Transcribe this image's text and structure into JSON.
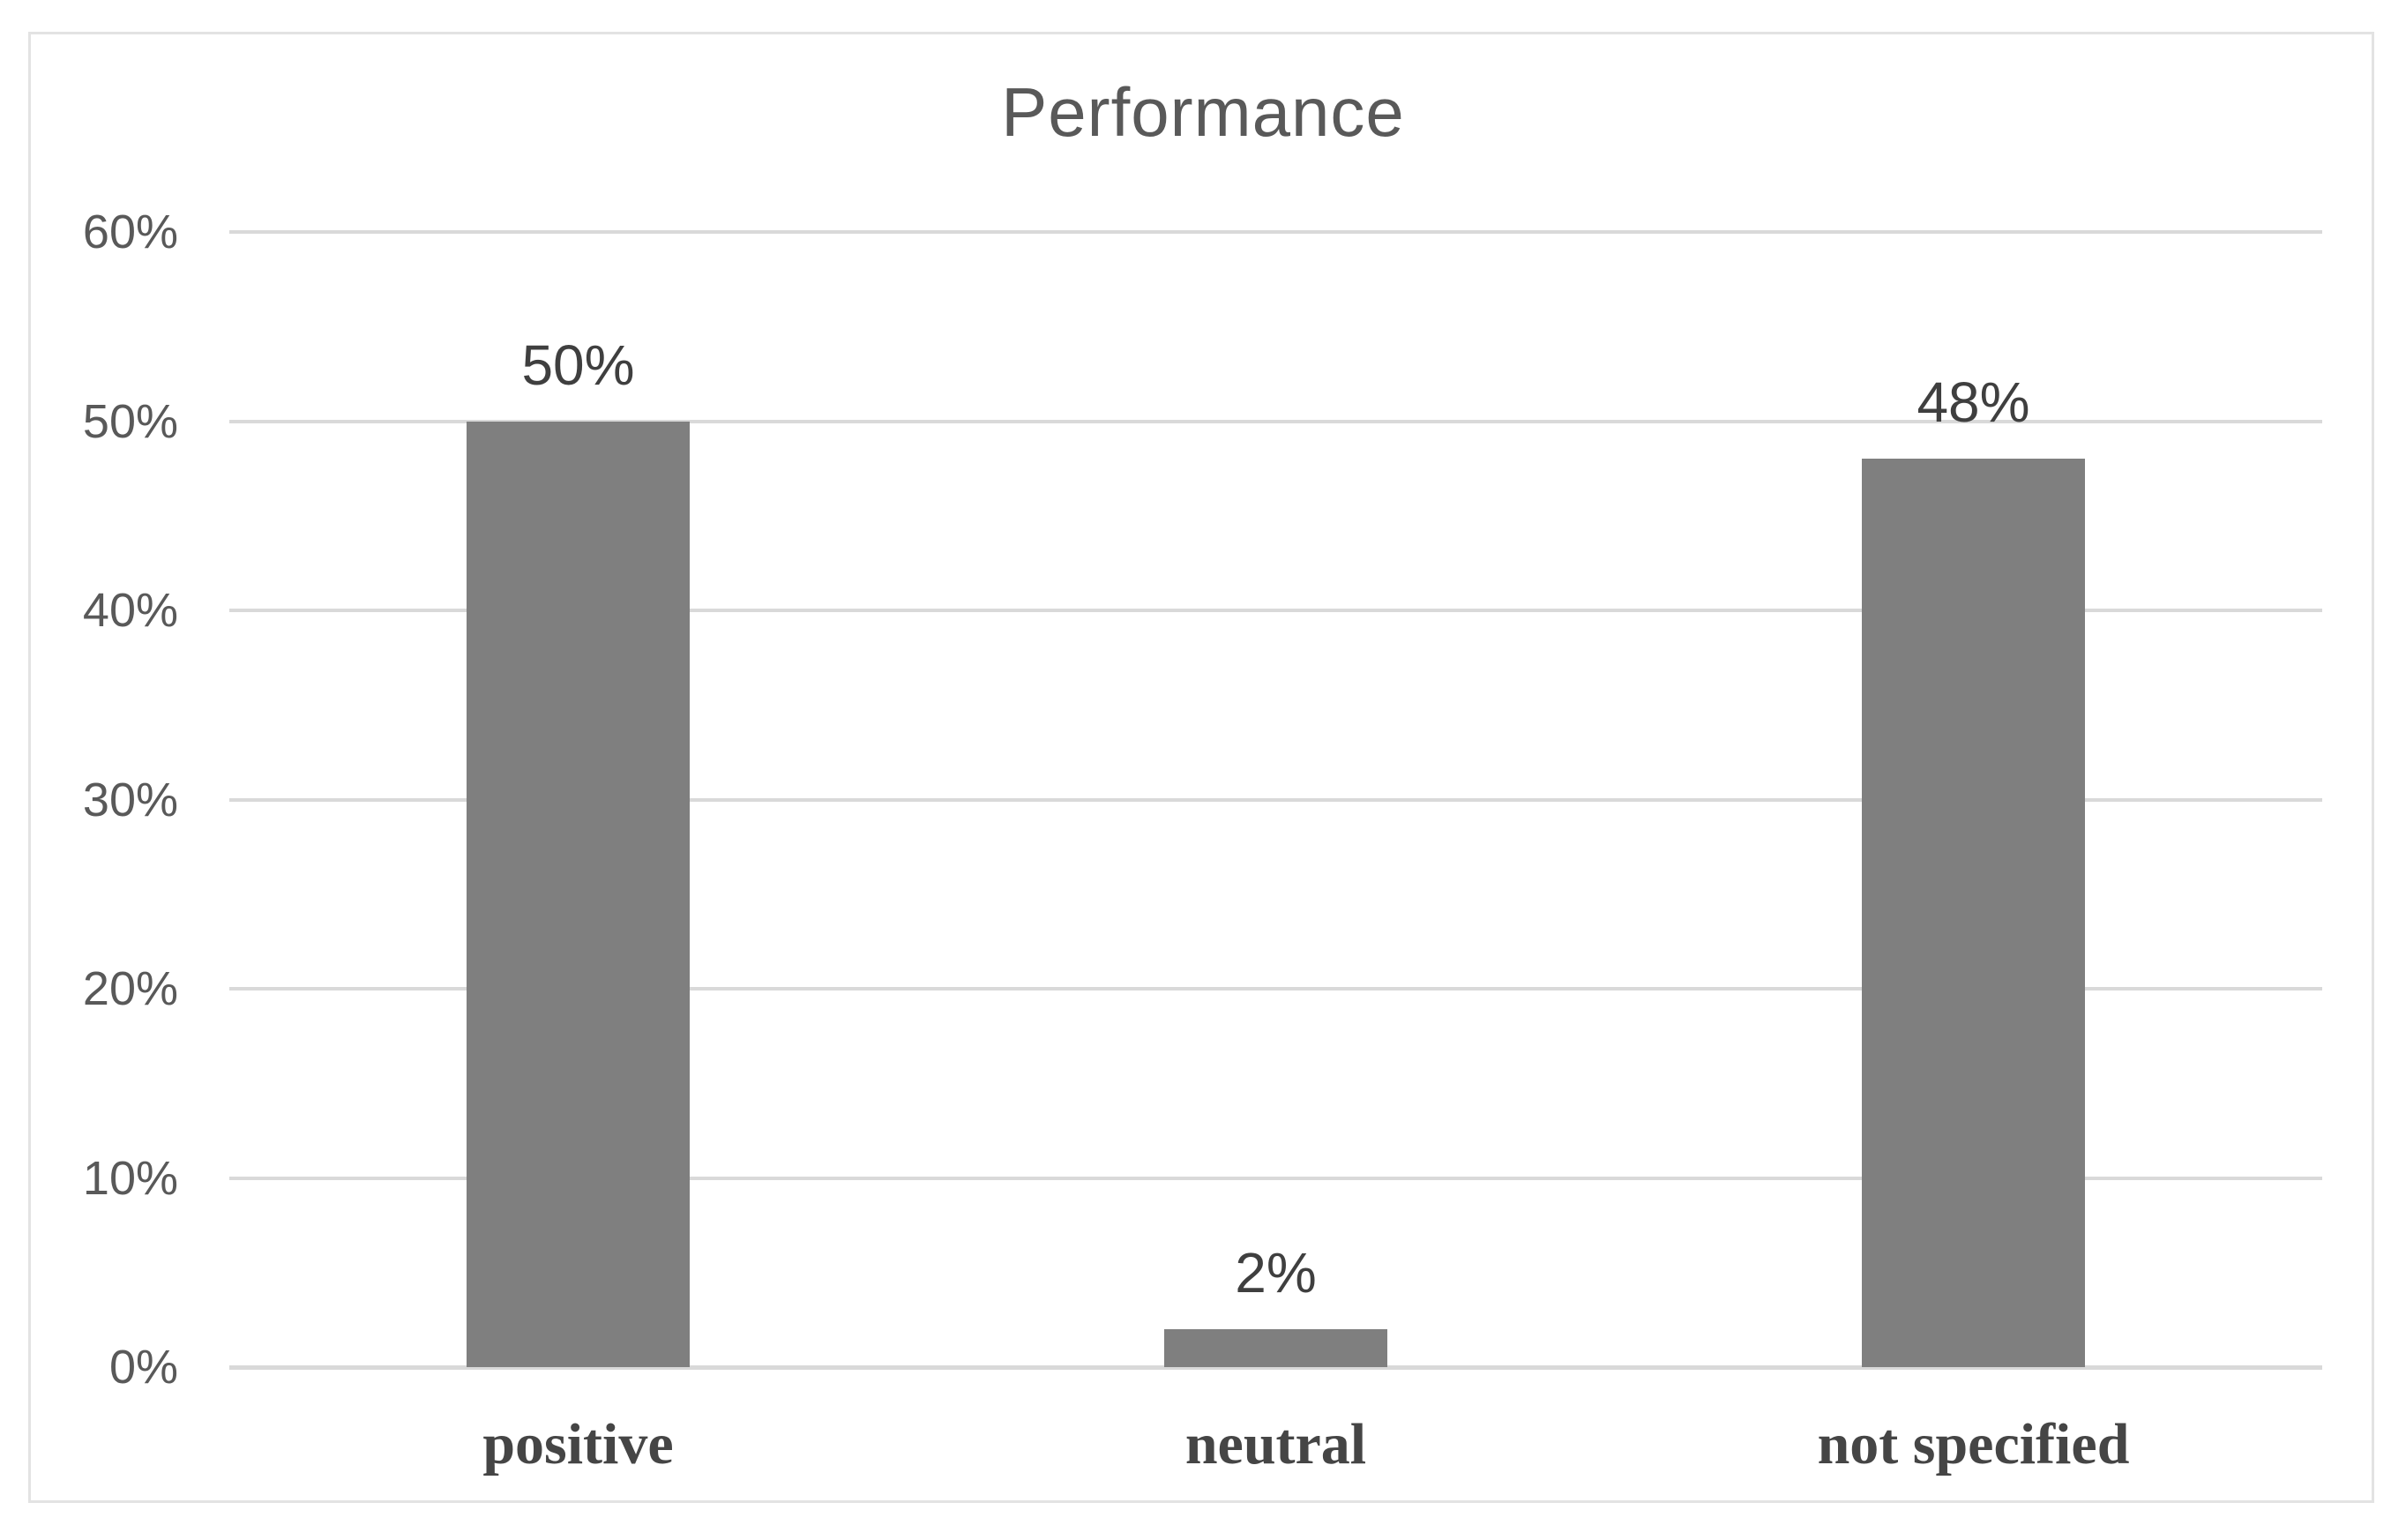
{
  "chart_data": {
    "type": "bar",
    "title": "Performance",
    "categories": [
      "positive",
      "neutral",
      "not specified"
    ],
    "values": [
      50,
      2,
      48
    ],
    "value_labels": [
      "50%",
      "2%",
      "48%"
    ],
    "xlabel": "",
    "ylabel": "",
    "ylim": [
      0,
      60
    ],
    "y_ticks": [
      0,
      10,
      20,
      30,
      40,
      50,
      60
    ],
    "y_tick_labels": [
      "0%",
      "10%",
      "20%",
      "30%",
      "40%",
      "50%",
      "60%"
    ],
    "grid": true,
    "legend": false,
    "colors": {
      "bar_fill": "#7f7f7f",
      "gridline": "#d9d9d9",
      "axis_line": "#d9d9d9",
      "title_text": "#595959",
      "tick_text": "#595959",
      "data_label_text": "#3f3f3f",
      "category_text": "#454545",
      "chart_border": "#e3e3e3",
      "background": "#ffffff"
    }
  }
}
